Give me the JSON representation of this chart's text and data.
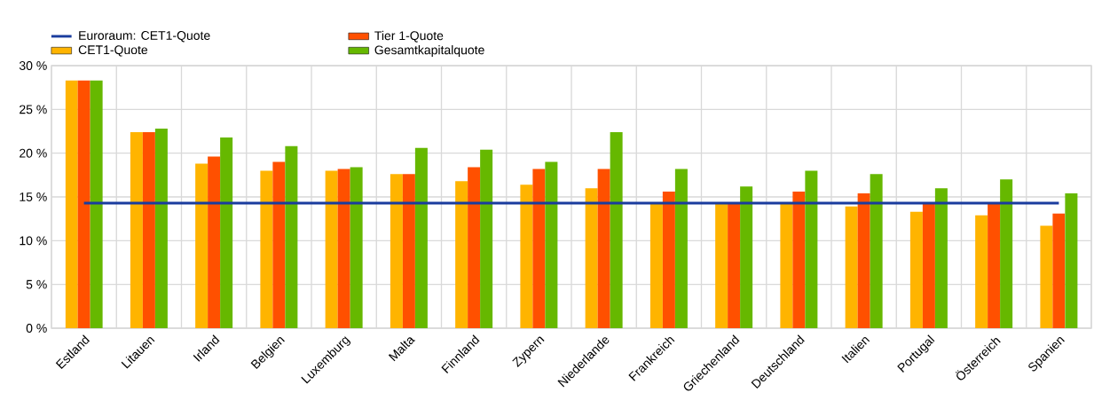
{
  "chart_data": {
    "type": "bar",
    "categories": [
      "Estland",
      "Litauen",
      "Irland",
      "Belgien",
      "Luxemburg",
      "Malta",
      "Finnland",
      "Zypern",
      "Niederlande",
      "Frankreich",
      "Griechenland",
      "Deutschland",
      "Italien",
      "Portugal",
      "Österreich",
      "Spanien"
    ],
    "series": [
      {
        "name": "Euroraum: CET1-Quote",
        "type": "line",
        "color": "#1a3c9e",
        "values": [
          14.3,
          14.3,
          14.3,
          14.3,
          14.3,
          14.3,
          14.3,
          14.3,
          14.3,
          14.3,
          14.3,
          14.3,
          14.3,
          14.3,
          14.3,
          14.3
        ]
      },
      {
        "name": "CET1-Quote",
        "color": "#ffb400",
        "values": [
          28.3,
          22.4,
          18.8,
          18.0,
          18.0,
          17.6,
          16.8,
          16.4,
          16.0,
          14.2,
          14.2,
          14.2,
          13.9,
          13.3,
          12.9,
          11.7
        ]
      },
      {
        "name": "Tier 1-Quote",
        "color": "#ff5000",
        "values": [
          28.3,
          22.4,
          19.6,
          19.0,
          18.2,
          17.6,
          18.4,
          18.2,
          18.2,
          15.6,
          14.3,
          15.6,
          15.4,
          14.3,
          14.3,
          13.1
        ]
      },
      {
        "name": "Gesamtkapitalquote",
        "color": "#66b800",
        "values": [
          28.3,
          22.8,
          21.8,
          20.8,
          18.4,
          20.6,
          20.4,
          19.0,
          22.4,
          18.2,
          16.2,
          18.0,
          17.6,
          16.0,
          17.0,
          15.4
        ]
      }
    ],
    "ylim": [
      0,
      30
    ],
    "yticks": [
      {
        "value": 0,
        "label": "0 %"
      },
      {
        "value": 5,
        "label": "5 %"
      },
      {
        "value": 10,
        "label": "10 %"
      },
      {
        "value": 15,
        "label": "15 %"
      },
      {
        "value": 20,
        "label": "20 %"
      },
      {
        "value": 25,
        "label": "25 %"
      },
      {
        "value": 30,
        "label": "30 %"
      }
    ],
    "grid": true,
    "legend": "top left",
    "marker": "none",
    "line_style": "solid"
  }
}
